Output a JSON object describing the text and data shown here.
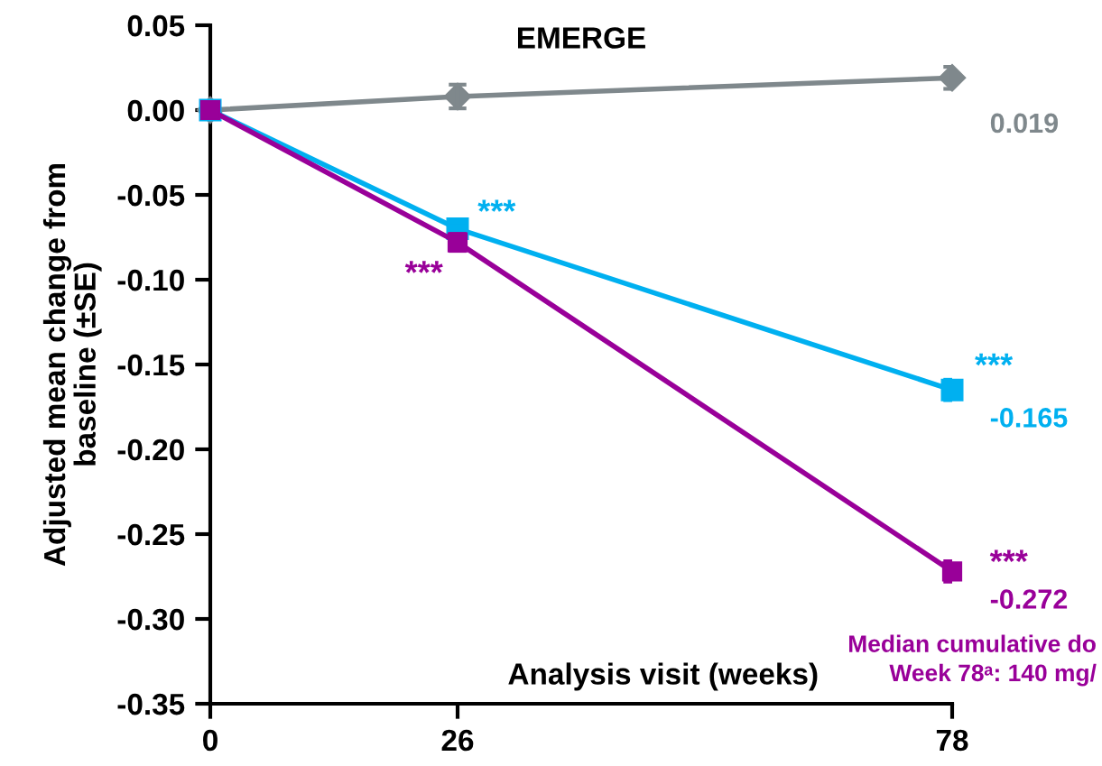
{
  "chart_data": {
    "type": "line",
    "title": "EMERGE",
    "xlabel": "Analysis visit (weeks)",
    "ylabel": "Adjusted mean change from\nbaseline (±SE)",
    "x": [
      0,
      26,
      78
    ],
    "xlim": [
      0,
      78
    ],
    "xticks": [
      0,
      26,
      78
    ],
    "ylim": [
      -0.35,
      0.05
    ],
    "yticks": [
      {
        "value": 0.05,
        "label": "0.05"
      },
      {
        "value": 0.0,
        "label": "0.00"
      },
      {
        "value": -0.05,
        "label": "-0.05"
      },
      {
        "value": -0.1,
        "label": "-0.10"
      },
      {
        "value": -0.15,
        "label": "-0.15"
      },
      {
        "value": -0.2,
        "label": "-0.20"
      },
      {
        "value": -0.25,
        "label": "-0.25"
      },
      {
        "value": -0.3,
        "label": "-0.30"
      },
      {
        "value": -0.35,
        "label": "-0.35"
      }
    ],
    "grid": false,
    "legend": false,
    "series": [
      {
        "color": "#7f888c",
        "marker": "diamond",
        "values": [
          0,
          0.008,
          0.019
        ],
        "errors": [
          null,
          0.007,
          0.0065
        ],
        "value_labels": [
          null,
          null,
          "0.019"
        ]
      },
      {
        "color": "#00b0f0",
        "marker": "square",
        "values": [
          0,
          -0.07,
          -0.165
        ],
        "errors": [
          null,
          0.004,
          0.006
        ],
        "value_labels": [
          null,
          null,
          "-0.165"
        ]
      },
      {
        "color": "#990099",
        "marker": "square",
        "values": [
          0,
          -0.078,
          -0.272
        ],
        "errors": [
          null,
          0.005,
          0.006
        ],
        "value_labels": [
          null,
          null,
          "-0.272"
        ]
      }
    ],
    "annotations": [
      "***",
      "***",
      "***",
      "***",
      "Median cumulative do\nWeek 78ᵃ: 140 mg/"
    ]
  }
}
